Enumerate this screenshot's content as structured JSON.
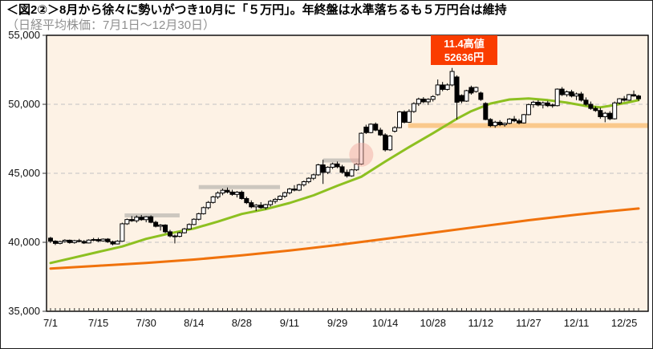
{
  "header": {
    "title": "＜図2②＞8月から徐々に勢いがつき10月に「５万円」。年終盤は水準落ちるも５万円台は維持",
    "subtitle": "（日経平均株価：7月1日～12月30日）"
  },
  "annotation": {
    "line1": "11.4高値",
    "line2": "52636円",
    "bg": "#fa3c00",
    "text_color": "#ffffff",
    "peak_day": 84,
    "peak_value": 52636
  },
  "colors": {
    "plot_bg": "#fdf2e5",
    "plot_border": "#000000",
    "gridline": "#c2c2c2",
    "candle_up_fill": "#ffffff",
    "candle_down_fill": "#000000",
    "candle_stroke": "#000000",
    "ma_short": "#8dc021",
    "ma_long": "#f0720c",
    "resistance_bar": "#c8c3bc",
    "support_bar": "#fac98c",
    "highlight_circle": "#f0a49c",
    "axis_text": "#111111"
  },
  "chart_data": {
    "type": "candlestick",
    "title": "日経平均株価：7月1日～12月30日",
    "ylim": [
      35000,
      55000
    ],
    "y_tick_values": [
      55000,
      50000,
      45000,
      40000,
      35000
    ],
    "y_tick_labels": [
      "55,000",
      "50,000",
      "45,000",
      "40,000",
      "35,000"
    ],
    "gridlines": [
      50000,
      45000,
      40000
    ],
    "x_tick_labels": [
      "7/1",
      "7/15",
      "7/30",
      "8/14",
      "8/28",
      "9/11",
      "9/29",
      "10/14",
      "10/28",
      "11/12",
      "11/27",
      "12/11",
      "12/25"
    ],
    "x_tick_days": [
      0,
      10,
      20,
      30,
      40,
      50,
      60,
      70,
      80,
      90,
      100,
      110,
      120
    ],
    "days_total": 124,
    "legend": "none",
    "candles_ohlc": [
      [
        40300,
        40400,
        39950,
        40080
      ],
      [
        40080,
        40150,
        39800,
        39920
      ],
      [
        39920,
        40120,
        39850,
        40050
      ],
      [
        40050,
        40220,
        39980,
        40150
      ],
      [
        40150,
        40200,
        39900,
        39980
      ],
      [
        39980,
        40180,
        39900,
        40120
      ],
      [
        40120,
        40250,
        40000,
        40060
      ],
      [
        40060,
        40160,
        39880,
        39950
      ],
      [
        39950,
        40220,
        39920,
        40160
      ],
      [
        40160,
        40320,
        40080,
        40200
      ],
      [
        40200,
        40330,
        40020,
        40100
      ],
      [
        40100,
        40280,
        40040,
        40230
      ],
      [
        40230,
        40300,
        39960,
        40040
      ],
      [
        40040,
        40120,
        39780,
        39880
      ],
      [
        39880,
        40150,
        39850,
        40080
      ],
      [
        40080,
        41420,
        40050,
        41340
      ],
      [
        41340,
        41720,
        41260,
        41650
      ],
      [
        41650,
        41900,
        41480,
        41560
      ],
      [
        41560,
        41950,
        41420,
        41820
      ],
      [
        41820,
        41980,
        41560,
        41640
      ],
      [
        41640,
        41900,
        41450,
        41850
      ],
      [
        41850,
        41950,
        41380,
        41450
      ],
      [
        41450,
        41560,
        41080,
        41160
      ],
      [
        41160,
        41320,
        40850,
        41250
      ],
      [
        41250,
        41310,
        40660,
        40760
      ],
      [
        40760,
        40900,
        40360,
        40460
      ],
      [
        40460,
        40560,
        39920,
        40430
      ],
      [
        40430,
        40760,
        40360,
        40690
      ],
      [
        40690,
        41040,
        40640,
        40970
      ],
      [
        40970,
        41370,
        40920,
        41290
      ],
      [
        41290,
        41740,
        41240,
        41670
      ],
      [
        41670,
        42140,
        41590,
        42070
      ],
      [
        42070,
        42590,
        42010,
        42510
      ],
      [
        42510,
        42990,
        42390,
        42890
      ],
      [
        42890,
        43370,
        42810,
        43290
      ],
      [
        43290,
        43690,
        43140,
        43570
      ],
      [
        43570,
        43890,
        43410,
        43770
      ],
      [
        43770,
        43970,
        43540,
        43640
      ],
      [
        43640,
        43810,
        43370,
        43470
      ],
      [
        43470,
        43710,
        43250,
        43630
      ],
      [
        43630,
        43750,
        43090,
        43170
      ],
      [
        43170,
        43310,
        42770,
        42870
      ],
      [
        42870,
        43040,
        42470,
        42570
      ],
      [
        42570,
        42770,
        42270,
        42690
      ],
      [
        42690,
        42910,
        42430,
        42510
      ],
      [
        42510,
        42790,
        42370,
        42730
      ],
      [
        42730,
        43070,
        42590,
        42970
      ],
      [
        42970,
        43210,
        42810,
        43110
      ],
      [
        43110,
        43410,
        43040,
        43340
      ],
      [
        43340,
        43670,
        43210,
        43590
      ],
      [
        43590,
        43940,
        43470,
        43860
      ],
      [
        43860,
        44140,
        43690,
        43780
      ],
      [
        43780,
        44240,
        43710,
        44170
      ],
      [
        44170,
        44470,
        44040,
        44390
      ],
      [
        44390,
        44710,
        44270,
        44640
      ],
      [
        44640,
        44970,
        44510,
        44890
      ],
      [
        44890,
        45690,
        44810,
        45610
      ],
      [
        45610,
        45980,
        44230,
        45070
      ],
      [
        45070,
        45510,
        44940,
        45440
      ],
      [
        45440,
        45770,
        45310,
        45680
      ],
      [
        45680,
        45850,
        45370,
        45470
      ],
      [
        45470,
        45610,
        44970,
        45070
      ],
      [
        45070,
        45270,
        44690,
        44810
      ],
      [
        44810,
        45310,
        44750,
        45250
      ],
      [
        45250,
        45740,
        45170,
        45670
      ],
      [
        45670,
        47960,
        45610,
        47900
      ],
      [
        48350,
        48520,
        47850,
        47950
      ],
      [
        47950,
        48620,
        47900,
        48560
      ],
      [
        48560,
        48680,
        48050,
        48130
      ],
      [
        48130,
        48300,
        47700,
        47780
      ],
      [
        47780,
        47900,
        46580,
        46700
      ],
      [
        46700,
        47780,
        46620,
        47700
      ],
      [
        48050,
        48420,
        47950,
        48310
      ],
      [
        48310,
        49520,
        48260,
        49450
      ],
      [
        49450,
        49560,
        48620,
        48700
      ],
      [
        48700,
        49640,
        48660,
        49480
      ],
      [
        49480,
        50150,
        49380,
        50050
      ],
      [
        50050,
        50480,
        49880,
        50380
      ],
      [
        50380,
        50520,
        50080,
        50180
      ],
      [
        50180,
        50440,
        49950,
        50360
      ],
      [
        50360,
        50660,
        50200,
        50560
      ],
      [
        50700,
        51800,
        50620,
        51400
      ],
      [
        51400,
        51620,
        50950,
        51080
      ],
      [
        51080,
        51520,
        51000,
        51400
      ],
      [
        51400,
        52636,
        51300,
        52380
      ],
      [
        51980,
        52100,
        48900,
        50150
      ],
      [
        50640,
        50720,
        50080,
        50230
      ],
      [
        50230,
        51050,
        50180,
        50990
      ],
      [
        51220,
        51350,
        50700,
        50820
      ],
      [
        50930,
        51280,
        50850,
        51220
      ],
      [
        50820,
        50920,
        50250,
        50350
      ],
      [
        50060,
        50150,
        48850,
        48900
      ],
      [
        48900,
        49000,
        48350,
        48450
      ],
      [
        48450,
        48800,
        48300,
        48700
      ],
      [
        48700,
        48850,
        48420,
        48520
      ],
      [
        48520,
        48680,
        48380,
        48620
      ],
      [
        48620,
        49000,
        48560,
        48930
      ],
      [
        48930,
        49150,
        48700,
        48800
      ],
      [
        48800,
        48950,
        48550,
        48650
      ],
      [
        48650,
        49300,
        48600,
        49250
      ],
      [
        49250,
        50050,
        49200,
        49980
      ],
      [
        49980,
        50250,
        49750,
        50150
      ],
      [
        50150,
        50300,
        49850,
        49950
      ],
      [
        49950,
        50200,
        49700,
        50100
      ],
      [
        50100,
        50250,
        49800,
        49900
      ],
      [
        49900,
        50050,
        49750,
        49950
      ],
      [
        49900,
        51150,
        49850,
        51100
      ],
      [
        51100,
        51250,
        50600,
        50700
      ],
      [
        50700,
        51000,
        50550,
        50900
      ],
      [
        50900,
        51050,
        50500,
        50600
      ],
      [
        50600,
        50850,
        50300,
        50750
      ],
      [
        50750,
        50900,
        50200,
        50300
      ],
      [
        50300,
        50500,
        49900,
        50000
      ],
      [
        50000,
        50200,
        49600,
        49700
      ],
      [
        49700,
        49850,
        49450,
        49550
      ],
      [
        49550,
        49750,
        48950,
        49100
      ],
      [
        49100,
        49450,
        48700,
        49350
      ],
      [
        49350,
        49500,
        48850,
        48950
      ],
      [
        48950,
        50200,
        48900,
        50100
      ],
      [
        50100,
        50450,
        50000,
        50400
      ],
      [
        50400,
        50600,
        50200,
        50300
      ],
      [
        50300,
        50750,
        50250,
        50700
      ],
      [
        50700,
        51000,
        50550,
        50600
      ],
      [
        50600,
        50700,
        50250,
        50400
      ]
    ],
    "ma_short_points": [
      [
        0,
        38500
      ],
      [
        5,
        38900
      ],
      [
        10,
        39300
      ],
      [
        15,
        39700
      ],
      [
        20,
        40250
      ],
      [
        25,
        40650
      ],
      [
        30,
        41000
      ],
      [
        35,
        41500
      ],
      [
        40,
        42050
      ],
      [
        45,
        42400
      ],
      [
        50,
        42850
      ],
      [
        55,
        43400
      ],
      [
        60,
        44100
      ],
      [
        65,
        44750
      ],
      [
        70,
        45850
      ],
      [
        75,
        46900
      ],
      [
        80,
        47900
      ],
      [
        85,
        48950
      ],
      [
        88,
        49500
      ],
      [
        92,
        50050
      ],
      [
        96,
        50350
      ],
      [
        100,
        50420
      ],
      [
        104,
        50300
      ],
      [
        108,
        50120
      ],
      [
        112,
        49880
      ],
      [
        115,
        49780
      ],
      [
        118,
        49950
      ],
      [
        121,
        50150
      ],
      [
        123,
        50300
      ]
    ],
    "ma_long_points": [
      [
        0,
        38100
      ],
      [
        10,
        38300
      ],
      [
        20,
        38500
      ],
      [
        30,
        38750
      ],
      [
        40,
        39050
      ],
      [
        50,
        39400
      ],
      [
        60,
        39800
      ],
      [
        70,
        40250
      ],
      [
        80,
        40700
      ],
      [
        90,
        41150
      ],
      [
        100,
        41600
      ],
      [
        110,
        42000
      ],
      [
        117,
        42250
      ],
      [
        123,
        42450
      ]
    ],
    "resistance_bars": [
      {
        "from_day": 15.5,
        "to_day": 27,
        "value": 41950
      },
      {
        "from_day": 31,
        "to_day": 48,
        "value": 44000
      },
      {
        "from_day": 57,
        "to_day": 65,
        "value": 45930
      }
    ],
    "support_bar": {
      "from_day": 74.8,
      "to_day": 126,
      "value": 48460
    },
    "highlight_circle": {
      "day": 65,
      "value": 46350,
      "radius": 15
    }
  }
}
